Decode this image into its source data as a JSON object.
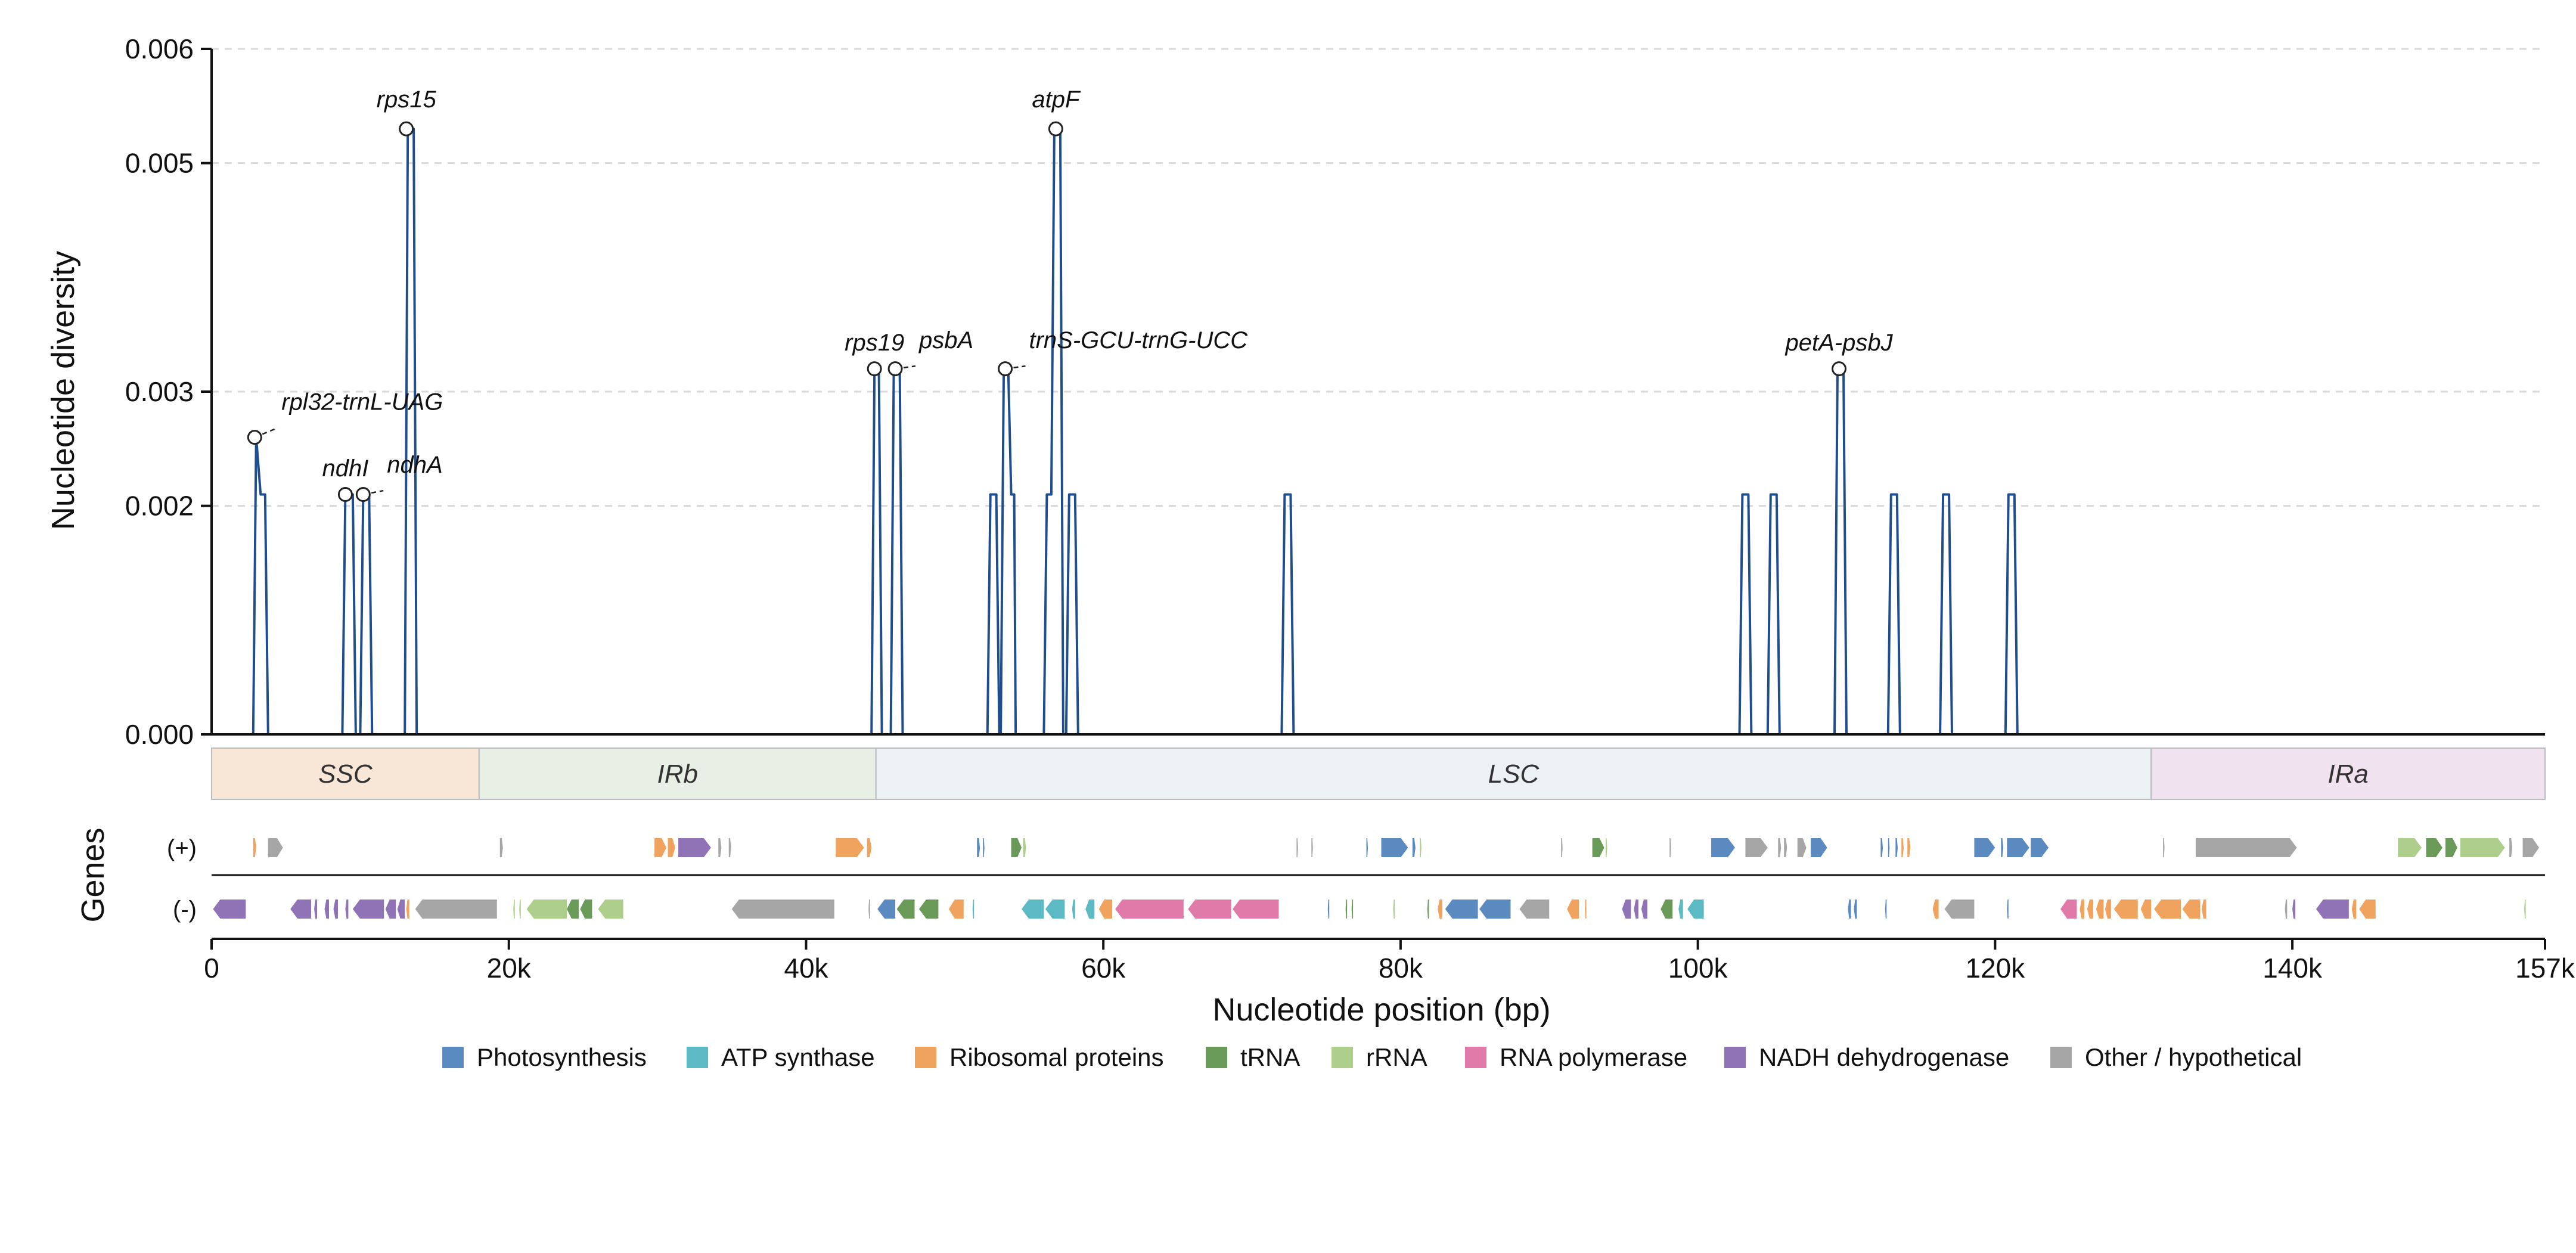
{
  "chart_data": {
    "type": "line",
    "xlabel": "Nucleotide position (bp)",
    "ylabel": "Nucleotide diversity",
    "xlim": [
      0,
      157000
    ],
    "ylim": [
      0,
      0.006
    ],
    "xticks": [
      {
        "value": 0,
        "label": "0"
      },
      {
        "value": 20000,
        "label": "20k"
      },
      {
        "value": 40000,
        "label": "40k"
      },
      {
        "value": 60000,
        "label": "60k"
      },
      {
        "value": 80000,
        "label": "80k"
      },
      {
        "value": 100000,
        "label": "100k"
      },
      {
        "value": 120000,
        "label": "120k"
      },
      {
        "value": 140000,
        "label": "140k"
      },
      {
        "value": 157000,
        "label": "157k"
      }
    ],
    "yticks": [
      {
        "value": 0,
        "label": "0.000"
      },
      {
        "value": 0.002,
        "label": "0.002"
      },
      {
        "value": 0.003,
        "label": "0.003"
      },
      {
        "value": 0.005,
        "label": "0.005"
      },
      {
        "value": 0.006,
        "label": "0.006"
      }
    ],
    "grid": "horizontal dashed",
    "line_color": "#1f4e8c",
    "series": [
      {
        "values": [
          [
            0,
            0
          ],
          [
            2800,
            0
          ],
          [
            3000,
            0.0026
          ],
          [
            3300,
            0.0021
          ],
          [
            3600,
            0.0021
          ],
          [
            3800,
            0
          ],
          [
            8800,
            0
          ],
          [
            9000,
            0.0021
          ],
          [
            9500,
            0.0021
          ],
          [
            9700,
            0
          ],
          [
            10000,
            0
          ],
          [
            10200,
            0.0021
          ],
          [
            10600,
            0.0021
          ],
          [
            10800,
            0
          ],
          [
            13000,
            0
          ],
          [
            13200,
            0.0053
          ],
          [
            13600,
            0.0053
          ],
          [
            13800,
            0
          ],
          [
            44400,
            0
          ],
          [
            44600,
            0.0032
          ],
          [
            44900,
            0.0032
          ],
          [
            45100,
            0
          ],
          [
            45700,
            0
          ],
          [
            45900,
            0.0032
          ],
          [
            46300,
            0.0032
          ],
          [
            46500,
            0
          ],
          [
            52200,
            0
          ],
          [
            52400,
            0.0021
          ],
          [
            52800,
            0.0021
          ],
          [
            53000,
            0
          ],
          [
            53100,
            0
          ],
          [
            53300,
            0.0032
          ],
          [
            53600,
            0.0032
          ],
          [
            53800,
            0.0021
          ],
          [
            54000,
            0.0021
          ],
          [
            54100,
            0
          ],
          [
            56000,
            0
          ],
          [
            56200,
            0.0021
          ],
          [
            56500,
            0.0021
          ],
          [
            56700,
            0.0053
          ],
          [
            57100,
            0.0053
          ],
          [
            57300,
            0
          ],
          [
            57500,
            0
          ],
          [
            57700,
            0.0021
          ],
          [
            58100,
            0.0021
          ],
          [
            58300,
            0
          ],
          [
            72000,
            0
          ],
          [
            72200,
            0.0021
          ],
          [
            72600,
            0.0021
          ],
          [
            72800,
            0
          ],
          [
            102800,
            0
          ],
          [
            103000,
            0.0021
          ],
          [
            103400,
            0.0021
          ],
          [
            103600,
            0
          ],
          [
            104700,
            0
          ],
          [
            104900,
            0.0021
          ],
          [
            105300,
            0.0021
          ],
          [
            105500,
            0
          ],
          [
            109200,
            0
          ],
          [
            109400,
            0.0032
          ],
          [
            109800,
            0.0032
          ],
          [
            110000,
            0
          ],
          [
            112800,
            0
          ],
          [
            113000,
            0.0021
          ],
          [
            113400,
            0.0021
          ],
          [
            113600,
            0
          ],
          [
            116300,
            0
          ],
          [
            116500,
            0.0021
          ],
          [
            116900,
            0.0021
          ],
          [
            117100,
            0
          ],
          [
            120700,
            0
          ],
          [
            120900,
            0.0021
          ],
          [
            121300,
            0.0021
          ],
          [
            121500,
            0
          ],
          [
            157000,
            0
          ]
        ]
      }
    ],
    "peaks": [
      {
        "label": "rpl32-trnL-UAG",
        "x": 2900,
        "y": 0.0026,
        "lx": 4700,
        "ly": 0.00284,
        "leader": true,
        "anchor": "start"
      },
      {
        "label": "ndhI",
        "x": 9000,
        "y": 0.0021,
        "lx": 9000,
        "ly": 0.00226,
        "leader": false,
        "anchor": "middle"
      },
      {
        "label": "ndhA",
        "x": 10200,
        "y": 0.0021,
        "lx": 11800,
        "ly": 0.00229,
        "leader": true,
        "anchor": "start"
      },
      {
        "label": "rps15",
        "x": 13100,
        "y": 0.0053,
        "lx": 13100,
        "ly": 0.00549,
        "leader": false,
        "anchor": "middle"
      },
      {
        "label": "rps19",
        "x": 44600,
        "y": 0.0032,
        "lx": 44600,
        "ly": 0.00336,
        "leader": false,
        "anchor": "middle"
      },
      {
        "label": "psbA",
        "x": 46000,
        "y": 0.0032,
        "lx": 47600,
        "ly": 0.00338,
        "leader": true,
        "anchor": "start"
      },
      {
        "label": "trnS-GCU-trnG-UCC",
        "x": 53400,
        "y": 0.0032,
        "lx": 55000,
        "ly": 0.00338,
        "leader": true,
        "anchor": "start"
      },
      {
        "label": "atpF",
        "x": 56800,
        "y": 0.0053,
        "lx": 56800,
        "ly": 0.00549,
        "leader": false,
        "anchor": "middle"
      },
      {
        "label": "petA-psbJ",
        "x": 109500,
        "y": 0.0032,
        "lx": 109500,
        "ly": 0.00336,
        "leader": false,
        "anchor": "middle"
      }
    ],
    "regions": [
      {
        "label": "SSC",
        "start": 0,
        "end": 18000,
        "color": "#f8e6d6"
      },
      {
        "label": "IRb",
        "start": 18000,
        "end": 44700,
        "color": "#e8efe4"
      },
      {
        "label": "LSC",
        "start": 44700,
        "end": 130500,
        "color": "#ecf1f4"
      },
      {
        "label": "IRa",
        "start": 130500,
        "end": 157000,
        "color": "#f0e2ee"
      }
    ],
    "genes_axis_label": "Genes",
    "strands": [
      {
        "key": "plus",
        "label": "(+)"
      },
      {
        "key": "minus",
        "label": "(-)"
      }
    ],
    "categories": [
      {
        "key": "photo",
        "label": "Photosynthesis",
        "color": "#5b8ac0"
      },
      {
        "key": "atp",
        "label": "ATP synthase",
        "color": "#5bbac4"
      },
      {
        "key": "ribo",
        "label": "Ribosomal proteins",
        "color": "#f0a35e"
      },
      {
        "key": "trna",
        "label": "tRNA",
        "color": "#6a9a58"
      },
      {
        "key": "rrna",
        "label": "rRNA",
        "color": "#aecf8c"
      },
      {
        "key": "rnap",
        "label": "RNA polymerase",
        "color": "#e07aa8"
      },
      {
        "key": "ndh",
        "label": "NADH dehydrogenase",
        "color": "#8f73b6"
      },
      {
        "key": "other",
        "label": "Other / hypothetical",
        "color": "#a6a6a6"
      }
    ],
    "genes": {
      "plus": [
        [
          "ribo",
          2800,
          3000
        ],
        [
          "other",
          3800,
          4800
        ],
        [
          "other",
          19400,
          19600
        ],
        [
          "ribo",
          29800,
          30600
        ],
        [
          "ribo",
          30700,
          31200
        ],
        [
          "ndh",
          31400,
          33600
        ],
        [
          "other",
          34100,
          34300
        ],
        [
          "other",
          34800,
          34950
        ],
        [
          "ribo",
          42000,
          43900
        ],
        [
          "ribo",
          44100,
          44400
        ],
        [
          "photo",
          51500,
          51700
        ],
        [
          "photo",
          51900,
          52000
        ],
        [
          "trna",
          53800,
          54500
        ],
        [
          "rrna",
          54600,
          54800
        ],
        [
          "other",
          73000,
          73100
        ],
        [
          "other",
          74000,
          74100
        ],
        [
          "photo",
          77700,
          77800
        ],
        [
          "photo",
          78700,
          80500
        ],
        [
          "photo",
          80800,
          81000
        ],
        [
          "rrna",
          81300,
          81400
        ],
        [
          "other",
          90800,
          90900
        ],
        [
          "trna",
          92900,
          93700
        ],
        [
          "rrna",
          93800,
          93900
        ],
        [
          "other",
          98100,
          98200
        ],
        [
          "photo",
          100900,
          102500
        ],
        [
          "other",
          103200,
          104700
        ],
        [
          "other",
          105400,
          105600
        ],
        [
          "other",
          105800,
          106000
        ],
        [
          "other",
          106700,
          107300
        ],
        [
          "photo",
          107600,
          108700
        ],
        [
          "photo",
          112300,
          112450
        ],
        [
          "photo",
          112800,
          112900
        ],
        [
          "photo",
          113300,
          113450
        ],
        [
          "ribo",
          113700,
          113850
        ],
        [
          "ribo",
          114100,
          114300
        ],
        [
          "photo",
          118600,
          120000
        ],
        [
          "photo",
          120400,
          120550
        ],
        [
          "photo",
          120800,
          122300
        ],
        [
          "photo",
          122400,
          123600
        ],
        [
          "other",
          131300,
          131400
        ],
        [
          "other",
          133500,
          140300
        ],
        [
          "rrna",
          147100,
          148700
        ],
        [
          "trna",
          149000,
          150100
        ],
        [
          "trna",
          150300,
          151100
        ],
        [
          "rrna",
          151300,
          154300
        ],
        [
          "other",
          154600,
          154800
        ],
        [
          "other",
          155500,
          156600
        ]
      ],
      "minus": [
        [
          "ndh",
          100,
          2300
        ],
        [
          "ndh",
          5300,
          6700
        ],
        [
          "ndh",
          6900,
          7100
        ],
        [
          "ndh",
          7600,
          7900
        ],
        [
          "ndh",
          8200,
          8500
        ],
        [
          "ndh",
          9000,
          9200
        ],
        [
          "ndh",
          9500,
          11600
        ],
        [
          "ndh",
          11700,
          12400
        ],
        [
          "ndh",
          12500,
          13000
        ],
        [
          "ribo",
          13100,
          13300
        ],
        [
          "other",
          13700,
          19200
        ],
        [
          "rrna",
          20300,
          20400
        ],
        [
          "rrna",
          20700,
          20800
        ],
        [
          "rrna",
          21200,
          23900
        ],
        [
          "trna",
          23900,
          24700
        ],
        [
          "trna",
          24800,
          25600
        ],
        [
          "rrna",
          26000,
          27700
        ],
        [
          "other",
          35000,
          41900
        ],
        [
          "other",
          44200,
          44300
        ],
        [
          "photo",
          44800,
          46000
        ],
        [
          "trna",
          46100,
          47300
        ],
        [
          "trna",
          47600,
          48900
        ],
        [
          "ribo",
          49600,
          50600
        ],
        [
          "atp",
          51200,
          51300
        ],
        [
          "atp",
          54500,
          56000
        ],
        [
          "atp",
          56100,
          57400
        ],
        [
          "atp",
          57900,
          58100
        ],
        [
          "atp",
          58800,
          59400
        ],
        [
          "ribo",
          59700,
          60600
        ],
        [
          "rnap",
          60800,
          65400
        ],
        [
          "rnap",
          65700,
          68600
        ],
        [
          "rnap",
          68700,
          71800
        ],
        [
          "photo",
          75100,
          75200
        ],
        [
          "trna",
          76300,
          76400
        ],
        [
          "trna",
          76700,
          76800
        ],
        [
          "rrna",
          79500,
          79600
        ],
        [
          "trna",
          81800,
          81900
        ],
        [
          "ribo",
          82500,
          82800
        ],
        [
          "photo",
          83000,
          85200
        ],
        [
          "photo",
          85300,
          87400
        ],
        [
          "other",
          88000,
          90000
        ],
        [
          "ribo",
          91200,
          92000
        ],
        [
          "ribo",
          92400,
          92500
        ],
        [
          "ndh",
          94900,
          95500
        ],
        [
          "ndh",
          95700,
          96000
        ],
        [
          "ndh",
          96200,
          96600
        ],
        [
          "trna",
          97500,
          98300
        ],
        [
          "atp",
          98700,
          99000
        ],
        [
          "atp",
          99300,
          100400
        ],
        [
          "photo",
          110100,
          110300
        ],
        [
          "photo",
          110500,
          110700
        ],
        [
          "photo",
          112600,
          112700
        ],
        [
          "ribo",
          115800,
          116200
        ],
        [
          "other",
          116600,
          118600
        ],
        [
          "photo",
          120800,
          120900
        ],
        [
          "rnap",
          124400,
          125500
        ],
        [
          "ribo",
          125700,
          126000
        ],
        [
          "ribo",
          126200,
          126600
        ],
        [
          "ribo",
          126800,
          127300
        ],
        [
          "ribo",
          127400,
          127800
        ],
        [
          "ribo",
          128000,
          129600
        ],
        [
          "ribo",
          129800,
          130500
        ],
        [
          "ribo",
          130700,
          132500
        ],
        [
          "ribo",
          132600,
          133800
        ],
        [
          "ribo",
          133900,
          134200
        ],
        [
          "other",
          139500,
          139650
        ],
        [
          "ndh",
          140000,
          140200
        ],
        [
          "ndh",
          141600,
          143800
        ],
        [
          "ribo",
          144000,
          144300
        ],
        [
          "ribo",
          144500,
          145600
        ],
        [
          "rrna",
          155600,
          155700
        ]
      ]
    }
  }
}
